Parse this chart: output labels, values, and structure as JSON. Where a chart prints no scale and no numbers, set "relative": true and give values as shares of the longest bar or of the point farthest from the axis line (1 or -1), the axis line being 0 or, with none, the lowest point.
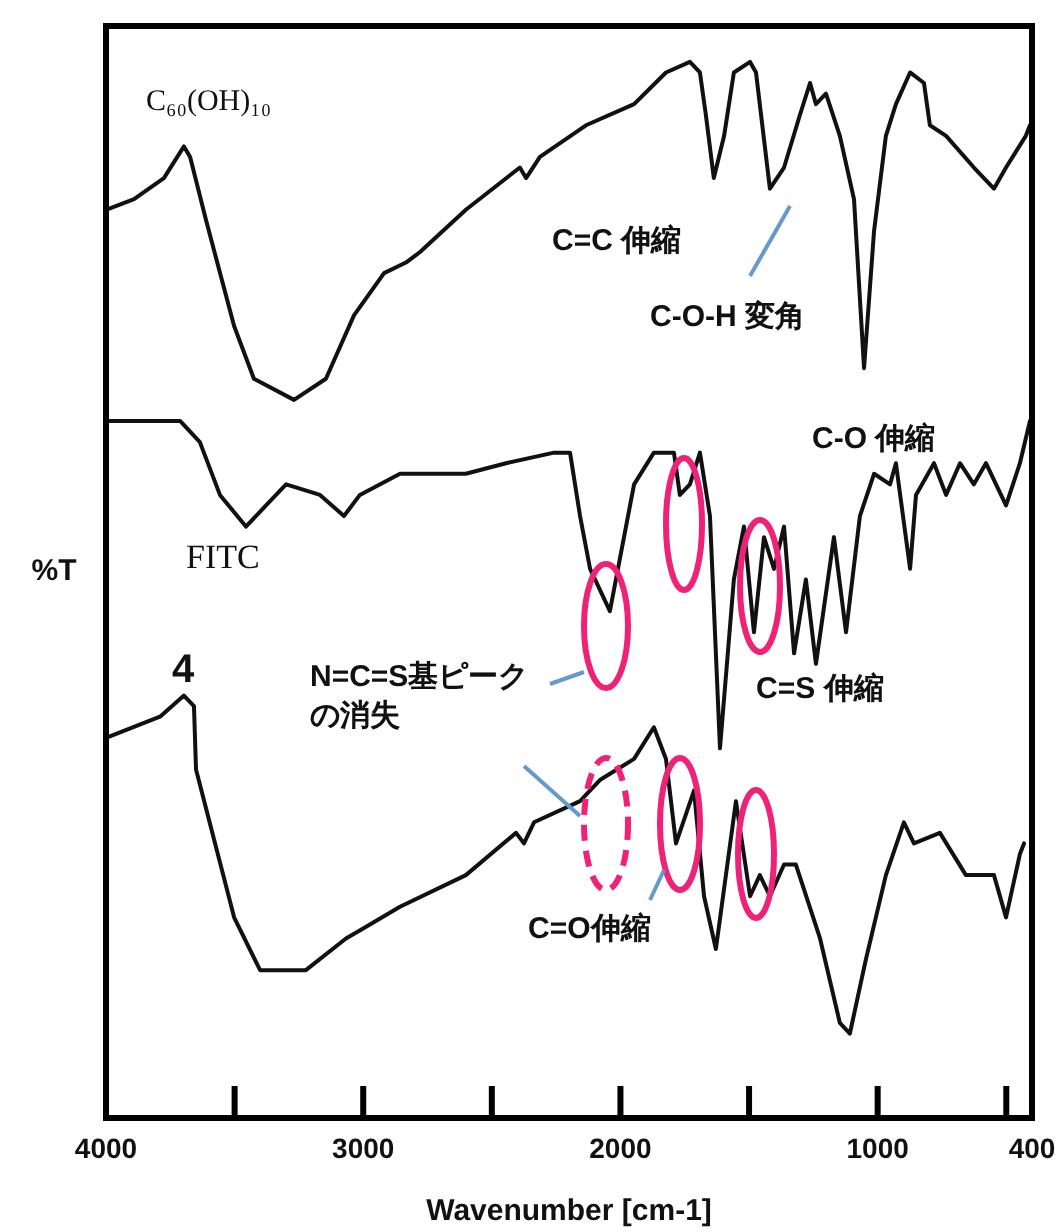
{
  "chart_data": {
    "type": "line",
    "relative": true,
    "xlabel": "Wavenumber [cm-1]",
    "ylabel": "%T",
    "xlim": [
      4000,
      400
    ],
    "xticks": [
      4000,
      {
        "value": 3500,
        "label": null
      },
      3000,
      {
        "value": 2500,
        "label": null
      },
      2000,
      {
        "value": 1500,
        "label": null
      },
      1000,
      {
        "value": 500,
        "label": null
      },
      {
        "value": 400,
        "label": "400"
      }
    ],
    "grid": false,
    "marker": "none",
    "line_style": "solid",
    "series": [
      {
        "name": "C₆₀(OH)₁₀",
        "color": "#111111",
        "x": [
          4000,
          3891,
          3775,
          3697,
          3673,
          3611,
          3502,
          3425,
          3269,
          3145,
          3036,
          2919,
          2834,
          2779,
          2601,
          2391,
          2367,
          2313,
          2134,
          1947,
          1823,
          1730,
          1691,
          1668,
          1637,
          1597,
          1559,
          1496,
          1473,
          1419,
          1364,
          1302,
          1263,
          1240,
          1201,
          1147,
          1092,
          1053,
          1014,
          968,
          929,
          874,
          820,
          797,
          734,
          626,
          548,
          501,
          424,
          408
        ],
        "values": [
          0.86,
          0.87,
          0.89,
          0.92,
          0.91,
          0.85,
          0.75,
          0.7,
          0.68,
          0.7,
          0.76,
          0.8,
          0.81,
          0.82,
          0.86,
          0.9,
          0.89,
          0.91,
          0.94,
          0.96,
          0.99,
          1.0,
          0.99,
          0.95,
          0.89,
          0.93,
          0.99,
          1.0,
          0.99,
          0.88,
          0.9,
          0.95,
          0.98,
          0.96,
          0.97,
          0.93,
          0.87,
          0.71,
          0.84,
          0.93,
          0.96,
          0.99,
          0.98,
          0.94,
          0.93,
          0.9,
          0.88,
          0.9,
          0.93,
          0.94
        ]
      },
      {
        "name": "FITC",
        "color": "#111111",
        "x": [
          4000,
          3712,
          3635,
          3557,
          3456,
          3378,
          3300,
          3168,
          3075,
          3013,
          2857,
          2725,
          2601,
          2445,
          2258,
          2196,
          2157,
          2118,
          2041,
          2002,
          1947,
          1870,
          1792,
          1769,
          1730,
          1691,
          1652,
          1613,
          1559,
          1520,
          1481,
          1442,
          1403,
          1364,
          1325,
          1279,
          1240,
          1170,
          1123,
          1069,
          1014,
          952,
          929,
          874,
          851,
          781,
          734,
          680,
          626,
          579,
          501,
          447,
          408
        ],
        "values": [
          0.66,
          0.66,
          0.64,
          0.59,
          0.56,
          0.58,
          0.6,
          0.59,
          0.57,
          0.59,
          0.61,
          0.61,
          0.61,
          0.62,
          0.63,
          0.63,
          0.57,
          0.52,
          0.48,
          0.53,
          0.6,
          0.63,
          0.63,
          0.59,
          0.6,
          0.63,
          0.57,
          0.35,
          0.51,
          0.56,
          0.46,
          0.55,
          0.52,
          0.56,
          0.44,
          0.51,
          0.43,
          0.55,
          0.46,
          0.57,
          0.61,
          0.6,
          0.62,
          0.52,
          0.59,
          0.62,
          0.59,
          0.62,
          0.6,
          0.62,
          0.58,
          0.62,
          0.66
        ]
      },
      {
        "name": "4",
        "color": "#111111",
        "x": [
          4000,
          3790,
          3697,
          3658,
          3650,
          3502,
          3401,
          3223,
          3067,
          2997,
          2857,
          2601,
          2406,
          2375,
          2336,
          2157,
          2080,
          1947,
          1870,
          1823,
          1784,
          1714,
          1675,
          1629,
          1551,
          1496,
          1458,
          1419,
          1364,
          1318,
          1224,
          1147,
          1108,
          1046,
          968,
          898,
          859,
          758,
          657,
          548,
          501,
          447,
          431
        ],
        "values": [
          0.36,
          0.38,
          0.4,
          0.39,
          0.33,
          0.19,
          0.14,
          0.14,
          0.17,
          0.18,
          0.2,
          0.23,
          0.27,
          0.26,
          0.28,
          0.3,
          0.32,
          0.34,
          0.37,
          0.34,
          0.26,
          0.31,
          0.21,
          0.16,
          0.3,
          0.21,
          0.23,
          0.21,
          0.24,
          0.24,
          0.17,
          0.09,
          0.08,
          0.15,
          0.23,
          0.28,
          0.26,
          0.27,
          0.23,
          0.23,
          0.19,
          0.25,
          0.26
        ]
      }
    ],
    "annotations": [
      "C=C 伸縮",
      "C-O-H 変角",
      "C-O 伸縮",
      "C=S 伸縮",
      "N=C=S基ピークの消失",
      "C=O伸縮"
    ]
  }
}
